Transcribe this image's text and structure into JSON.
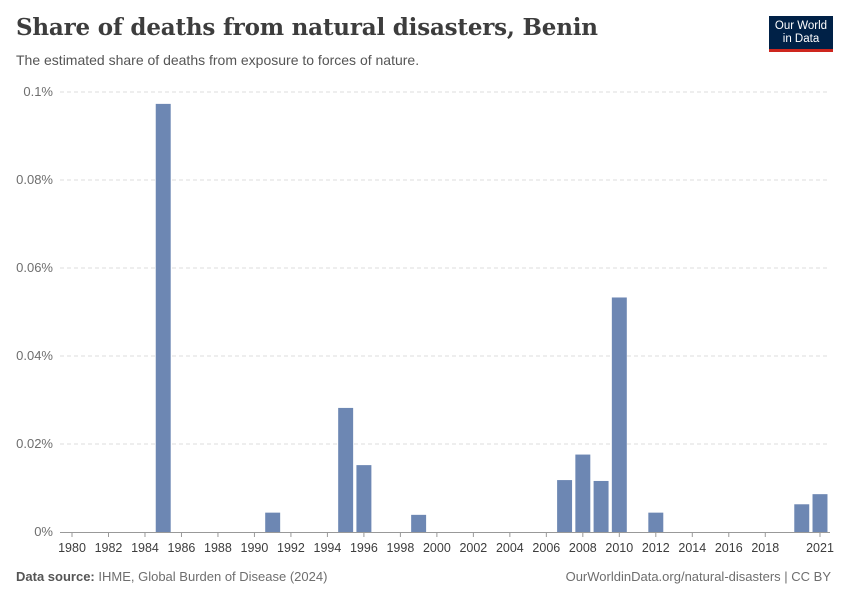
{
  "header": {
    "title": "Share of deaths from natural disasters, Benin",
    "subtitle": "The estimated share of deaths from exposure to forces of nature.",
    "logo_line1": "Our World",
    "logo_line2": "in Data"
  },
  "footer": {
    "source_label": "Data source:",
    "source_text": "IHME, Global Burden of Disease (2024)",
    "link_text": "OurWorldinData.org/natural-disasters | CC BY"
  },
  "colors": {
    "bar": "#6d87b3",
    "grid": "#dddddd",
    "axis": "#999999",
    "title": "#3d3d3d",
    "logo_bg": "#002147",
    "logo_accent": "#ce261e"
  },
  "chart_data": {
    "type": "bar",
    "title": "Share of deaths from natural disasters, Benin",
    "xlabel": "",
    "ylabel": "",
    "x_range": [
      1980,
      2021
    ],
    "ylim": [
      0,
      0.1
    ],
    "y_ticks": [
      0,
      0.02,
      0.04,
      0.06,
      0.08,
      0.1
    ],
    "y_tick_labels": [
      "0%",
      "0.02%",
      "0.04%",
      "0.06%",
      "0.08%",
      "0.1%"
    ],
    "x_ticks": [
      1980,
      1982,
      1984,
      1986,
      1988,
      1990,
      1992,
      1994,
      1996,
      1998,
      2000,
      2002,
      2004,
      2006,
      2008,
      2010,
      2012,
      2014,
      2016,
      2018,
      2021
    ],
    "x_tick_labels": [
      "1980",
      "1982",
      "1984",
      "1986",
      "1988",
      "1990",
      "1992",
      "1994",
      "1996",
      "1998",
      "2000",
      "2002",
      "2004",
      "2006",
      "2008",
      "2010",
      "2012",
      "2014",
      "2016",
      "2018",
      "2021"
    ],
    "grid": true,
    "unit": "%",
    "bars": [
      {
        "year": 1985,
        "value": 0.0973
      },
      {
        "year": 1991,
        "value": 0.0044
      },
      {
        "year": 1995,
        "value": 0.0282
      },
      {
        "year": 1996,
        "value": 0.0152
      },
      {
        "year": 1999,
        "value": 0.0039
      },
      {
        "year": 2007,
        "value": 0.0118
      },
      {
        "year": 2008,
        "value": 0.0176
      },
      {
        "year": 2009,
        "value": 0.0116
      },
      {
        "year": 2010,
        "value": 0.0533
      },
      {
        "year": 2012,
        "value": 0.0044
      },
      {
        "year": 2020,
        "value": 0.0063
      },
      {
        "year": 2021,
        "value": 0.0086
      }
    ]
  }
}
